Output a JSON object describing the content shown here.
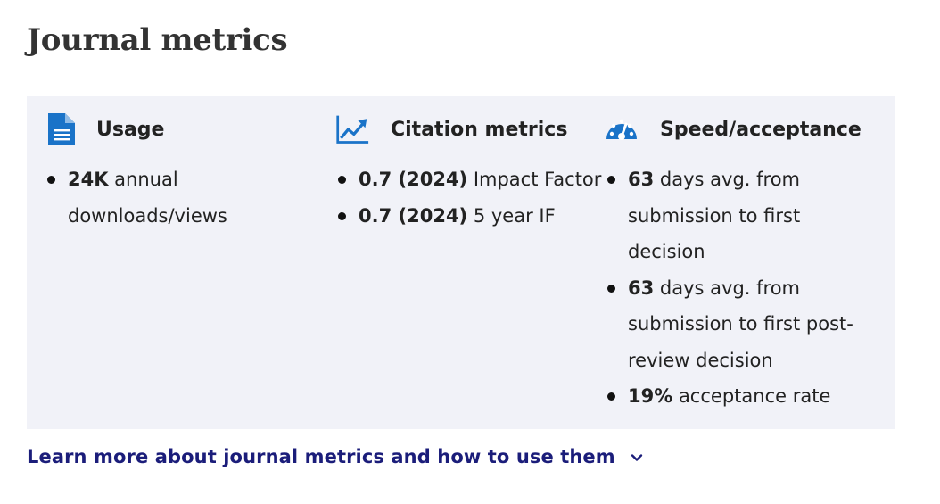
{
  "page": {
    "title": "Journal metrics"
  },
  "colors": {
    "accent_blue": "#1a73c8",
    "link": "#1b1d7a",
    "panel_bg": "#f1f2f8"
  },
  "columns": [
    {
      "id": "usage",
      "icon": "document-icon",
      "heading": "Usage",
      "items": [
        {
          "value": "24K",
          "text": " annual downloads/views"
        }
      ]
    },
    {
      "id": "citation",
      "icon": "trend-chart-icon",
      "heading": "Citation metrics",
      "items": [
        {
          "value": "0.7 (2024)",
          "text": " Impact Factor"
        },
        {
          "value": "0.7 (2024)",
          "text": " 5 year IF"
        }
      ]
    },
    {
      "id": "speed",
      "icon": "speedometer-icon",
      "heading": "Speed/acceptance",
      "items": [
        {
          "value": "63",
          "text": " days avg. from submission to first decision"
        },
        {
          "value": "63",
          "text": " days avg. from submission to first post-review decision"
        },
        {
          "value": "19%",
          "text": " acceptance rate"
        }
      ]
    }
  ],
  "footer_link": {
    "label": "Learn more about journal metrics and how to use them",
    "icon": "chevron-down-icon"
  }
}
